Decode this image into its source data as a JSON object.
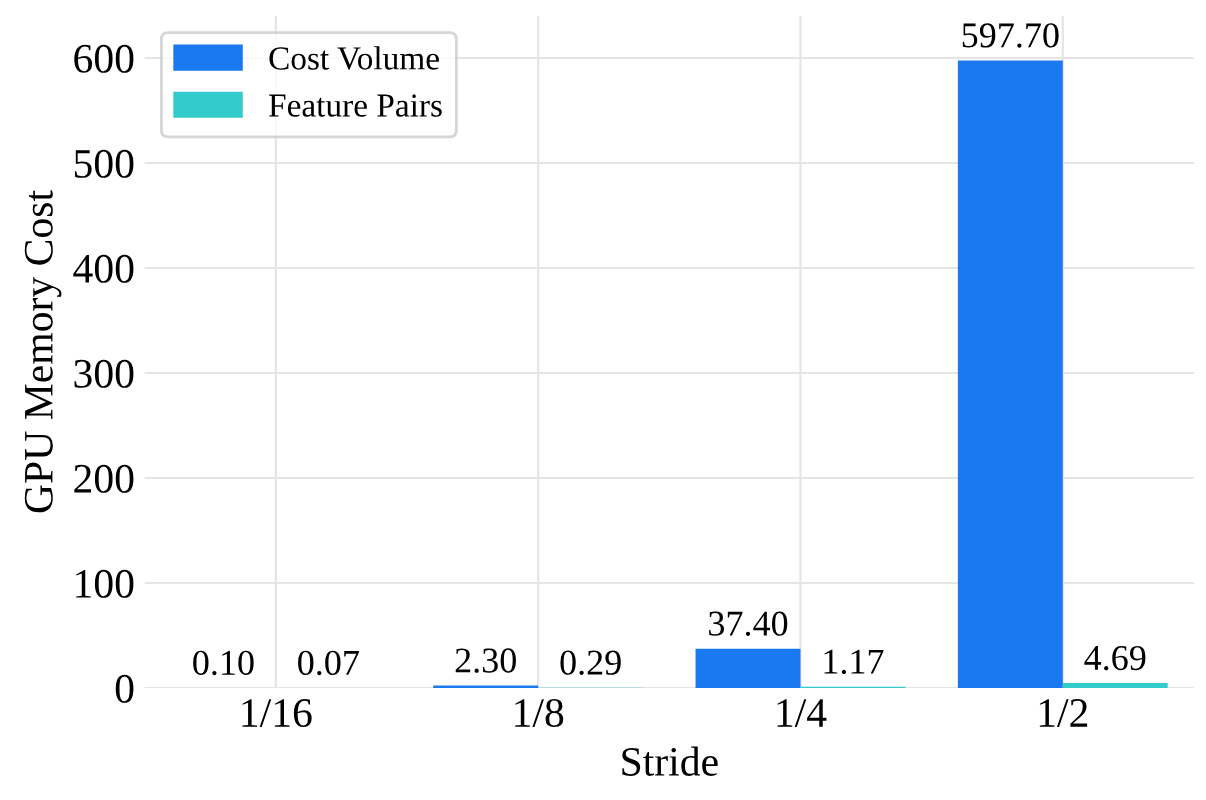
{
  "chart_data": {
    "type": "bar",
    "xlabel": "Stride",
    "ylabel": "GPU Memory Cost",
    "categories": [
      "1/16",
      "1/8",
      "1/4",
      "1/2"
    ],
    "series": [
      {
        "name": "Cost Volume",
        "color": "#1a78f0",
        "values": [
          0.1,
          2.3,
          37.4,
          597.7
        ],
        "value_labels": [
          "0.10",
          "2.30",
          "37.40",
          "597.70"
        ]
      },
      {
        "name": "Feature Pairs",
        "color": "#33cccc",
        "values": [
          0.07,
          0.29,
          1.17,
          4.69
        ],
        "value_labels": [
          "0.07",
          "0.29",
          "1.17",
          "4.69"
        ]
      }
    ],
    "ylim": [
      0,
      640
    ],
    "yticks": [
      0,
      100,
      200,
      300,
      400,
      500,
      600
    ],
    "grid": true,
    "legend": "top left"
  }
}
